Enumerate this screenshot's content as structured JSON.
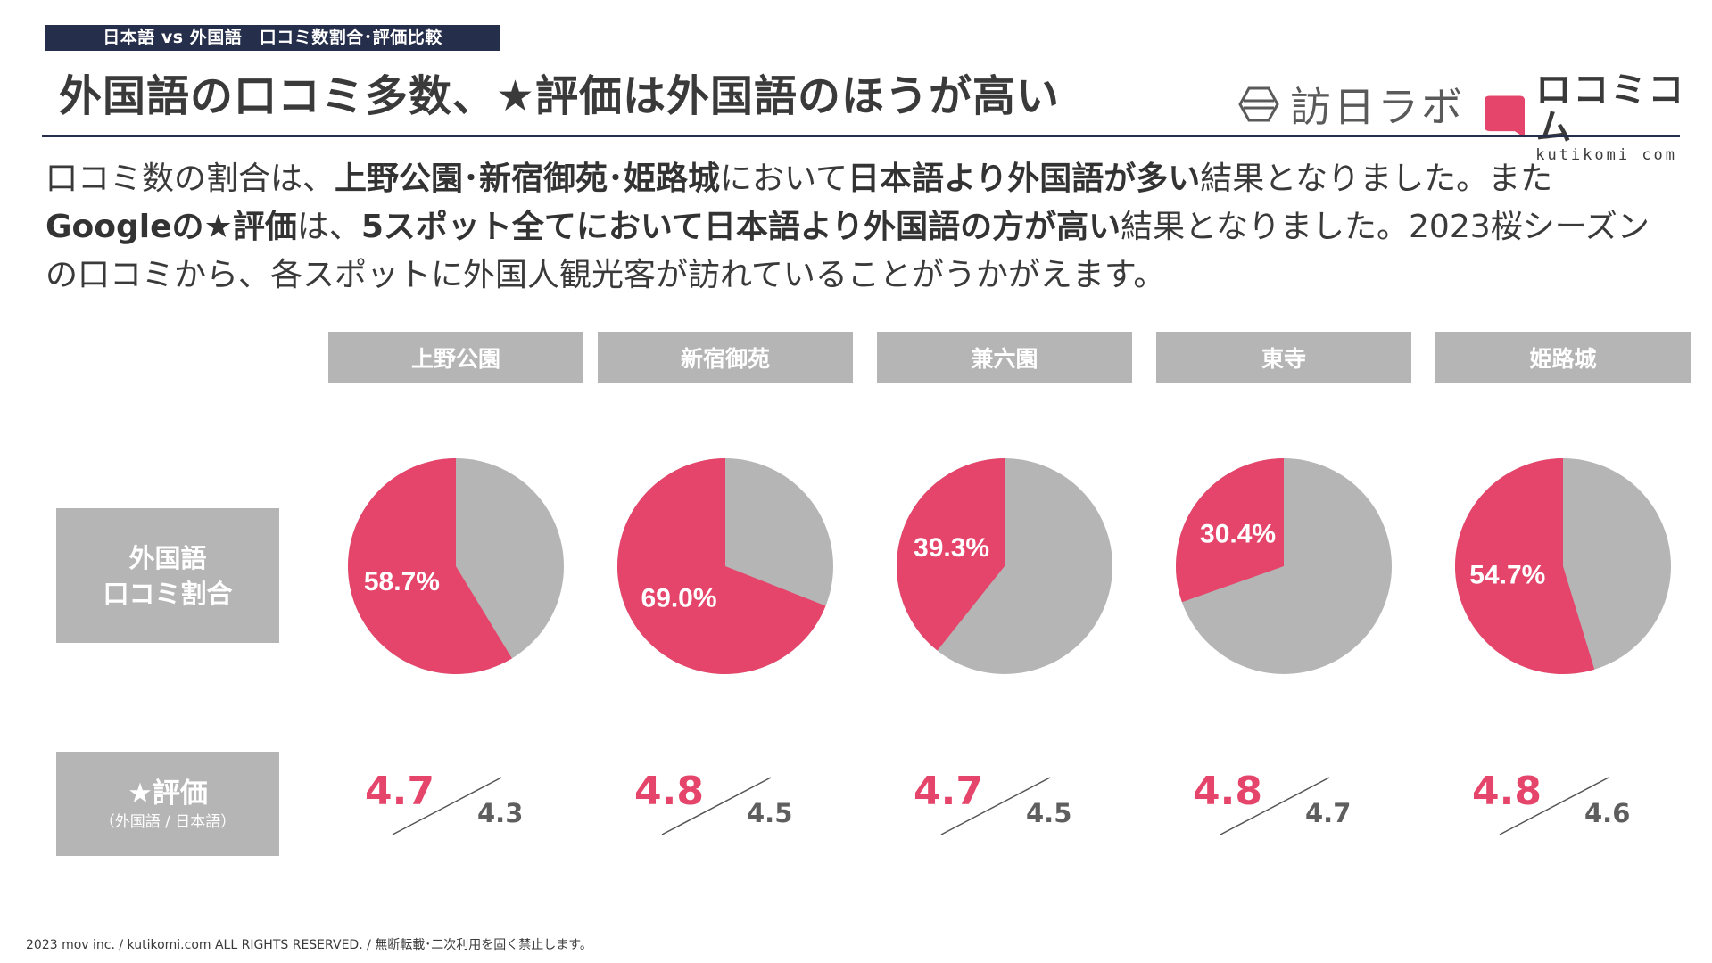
{
  "header": {
    "tag": "日本語 vs 外国語　口コミ数割合･評価比較",
    "headline": "外国語の口コミ多数、★評価は外国語のほうが高い"
  },
  "logos": {
    "labo": "訪日ラボ",
    "kutikomi_main": "ロコミコム",
    "kutikomi_url": "kutikomi com"
  },
  "description": {
    "l1_a": "口コミ数の割合は、",
    "l1_b": "上野公園･新宿御苑･姫路城",
    "l1_c": "において",
    "l1_d": "日本語より外国語が多い",
    "l1_e": "結果となりました。また",
    "l2_a": "Googleの★評価",
    "l2_b": "は、",
    "l2_c": "5スポット全てにおいて日本語より外国語の方が高い",
    "l2_d": "結果となりました。2023桜シーズン",
    "l3": "の口コミから、各スポットに外国人観光客が訪れていることがうかがえます。"
  },
  "row_labels": {
    "share_line1": "外国語",
    "share_line2": "口コミ割合",
    "rating_main": "★評価",
    "rating_sub": "（外国語 / 日本語）"
  },
  "colors": {
    "foreign": "#e5456a",
    "japanese": "#b5b5b5",
    "navy": "#252e4a"
  },
  "chart_data": {
    "type": "pie",
    "title": "外国語口コミ割合",
    "series_names": [
      "外国語",
      "日本語"
    ],
    "spots": [
      {
        "name": "上野公園",
        "foreign_pct": 58.7,
        "label": "58.7%",
        "rating_foreign": "4.7",
        "rating_japanese": "4.3"
      },
      {
        "name": "新宿御苑",
        "foreign_pct": 69.0,
        "label": "69.0%",
        "rating_foreign": "4.8",
        "rating_japanese": "4.5"
      },
      {
        "name": "兼六園",
        "foreign_pct": 39.3,
        "label": "39.3%",
        "rating_foreign": "4.7",
        "rating_japanese": "4.5"
      },
      {
        "name": "東寺",
        "foreign_pct": 30.4,
        "label": "30.4%",
        "rating_foreign": "4.8",
        "rating_japanese": "4.7"
      },
      {
        "name": "姫路城",
        "foreign_pct": 54.7,
        "label": "54.7%",
        "rating_foreign": "4.8",
        "rating_japanese": "4.6"
      }
    ]
  },
  "footer": "2023 mov inc. / kutikomi.com ALL RIGHTS RESERVED. / 無断転載･二次利用を固く禁止します。"
}
